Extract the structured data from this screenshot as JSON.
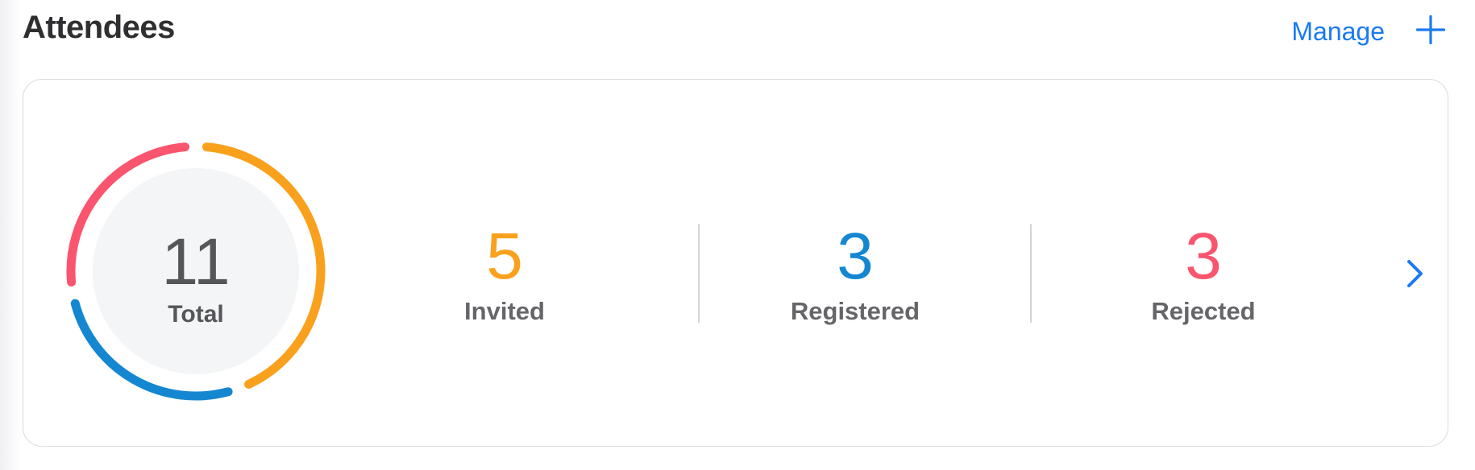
{
  "header": {
    "title": "Attendees",
    "manage_label": "Manage"
  },
  "card": {
    "total": {
      "value": "11",
      "label": "Total"
    },
    "stats": [
      {
        "value": "5",
        "label": "Invited",
        "color": "#f9a11d"
      },
      {
        "value": "3",
        "label": "Registered",
        "color": "#1587d1"
      },
      {
        "value": "3",
        "label": "Rejected",
        "color": "#fa556e"
      }
    ]
  },
  "chart_data": {
    "type": "pie",
    "variant": "donut",
    "title": "Attendees",
    "categories": [
      "Invited",
      "Registered",
      "Rejected"
    ],
    "values": [
      5,
      3,
      3
    ],
    "colors": [
      "#f9a11d",
      "#1587d1",
      "#fa556e"
    ],
    "total": 11,
    "center_value": "11",
    "center_label": "Total",
    "start_angle_deg": 0,
    "gap_deg": 10,
    "ring_stroke_px": 11,
    "legend_position": "none"
  },
  "colors": {
    "accent_blue": "#1a7af2",
    "title_text": "#2f2f31",
    "number_gray": "#565659",
    "label_gray": "#66666a",
    "card_border": "#dbdbdd",
    "divider": "#d4d4d8",
    "donut_inner_fill": "#f4f5f6"
  }
}
